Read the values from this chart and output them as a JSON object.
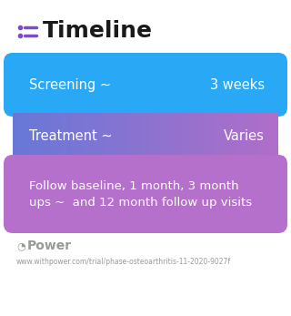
{
  "title": "Timeline",
  "title_fontsize": 18,
  "title_color": "#1a1a1a",
  "title_icon_color": "#7c4dc9",
  "bg_color": "#ffffff",
  "rows": [
    {
      "left_text": "Screening ~",
      "right_text": "3 weeks",
      "bg_color": "#29a8f5",
      "gradient_left": "#29a8f5",
      "gradient_right": "#29a8f5",
      "text_color": "#ffffff",
      "font_size": 10.5
    },
    {
      "left_text": "Treatment ~",
      "right_text": "Varies",
      "bg_color": "#7a7dd4",
      "gradient_left": "#6878d8",
      "gradient_right": "#b06ec9",
      "text_color": "#ffffff",
      "font_size": 10.5
    },
    {
      "left_text": "Follow baseline, 1 month, 3 month\nups ~  and 12 month follow up visits",
      "right_text": "",
      "bg_color": "#b570cc",
      "gradient_left": "#b570cc",
      "gradient_right": "#b570cc",
      "text_color": "#ffffff",
      "font_size": 9.5
    }
  ],
  "footer_text": "Power",
  "footer_url": "www.withpower.com/trial/phase-osteoarthritis-11-2020-9027f",
  "footer_color": "#999999",
  "footer_fontsize": 5.5,
  "footer_icon_fontsize": 8
}
